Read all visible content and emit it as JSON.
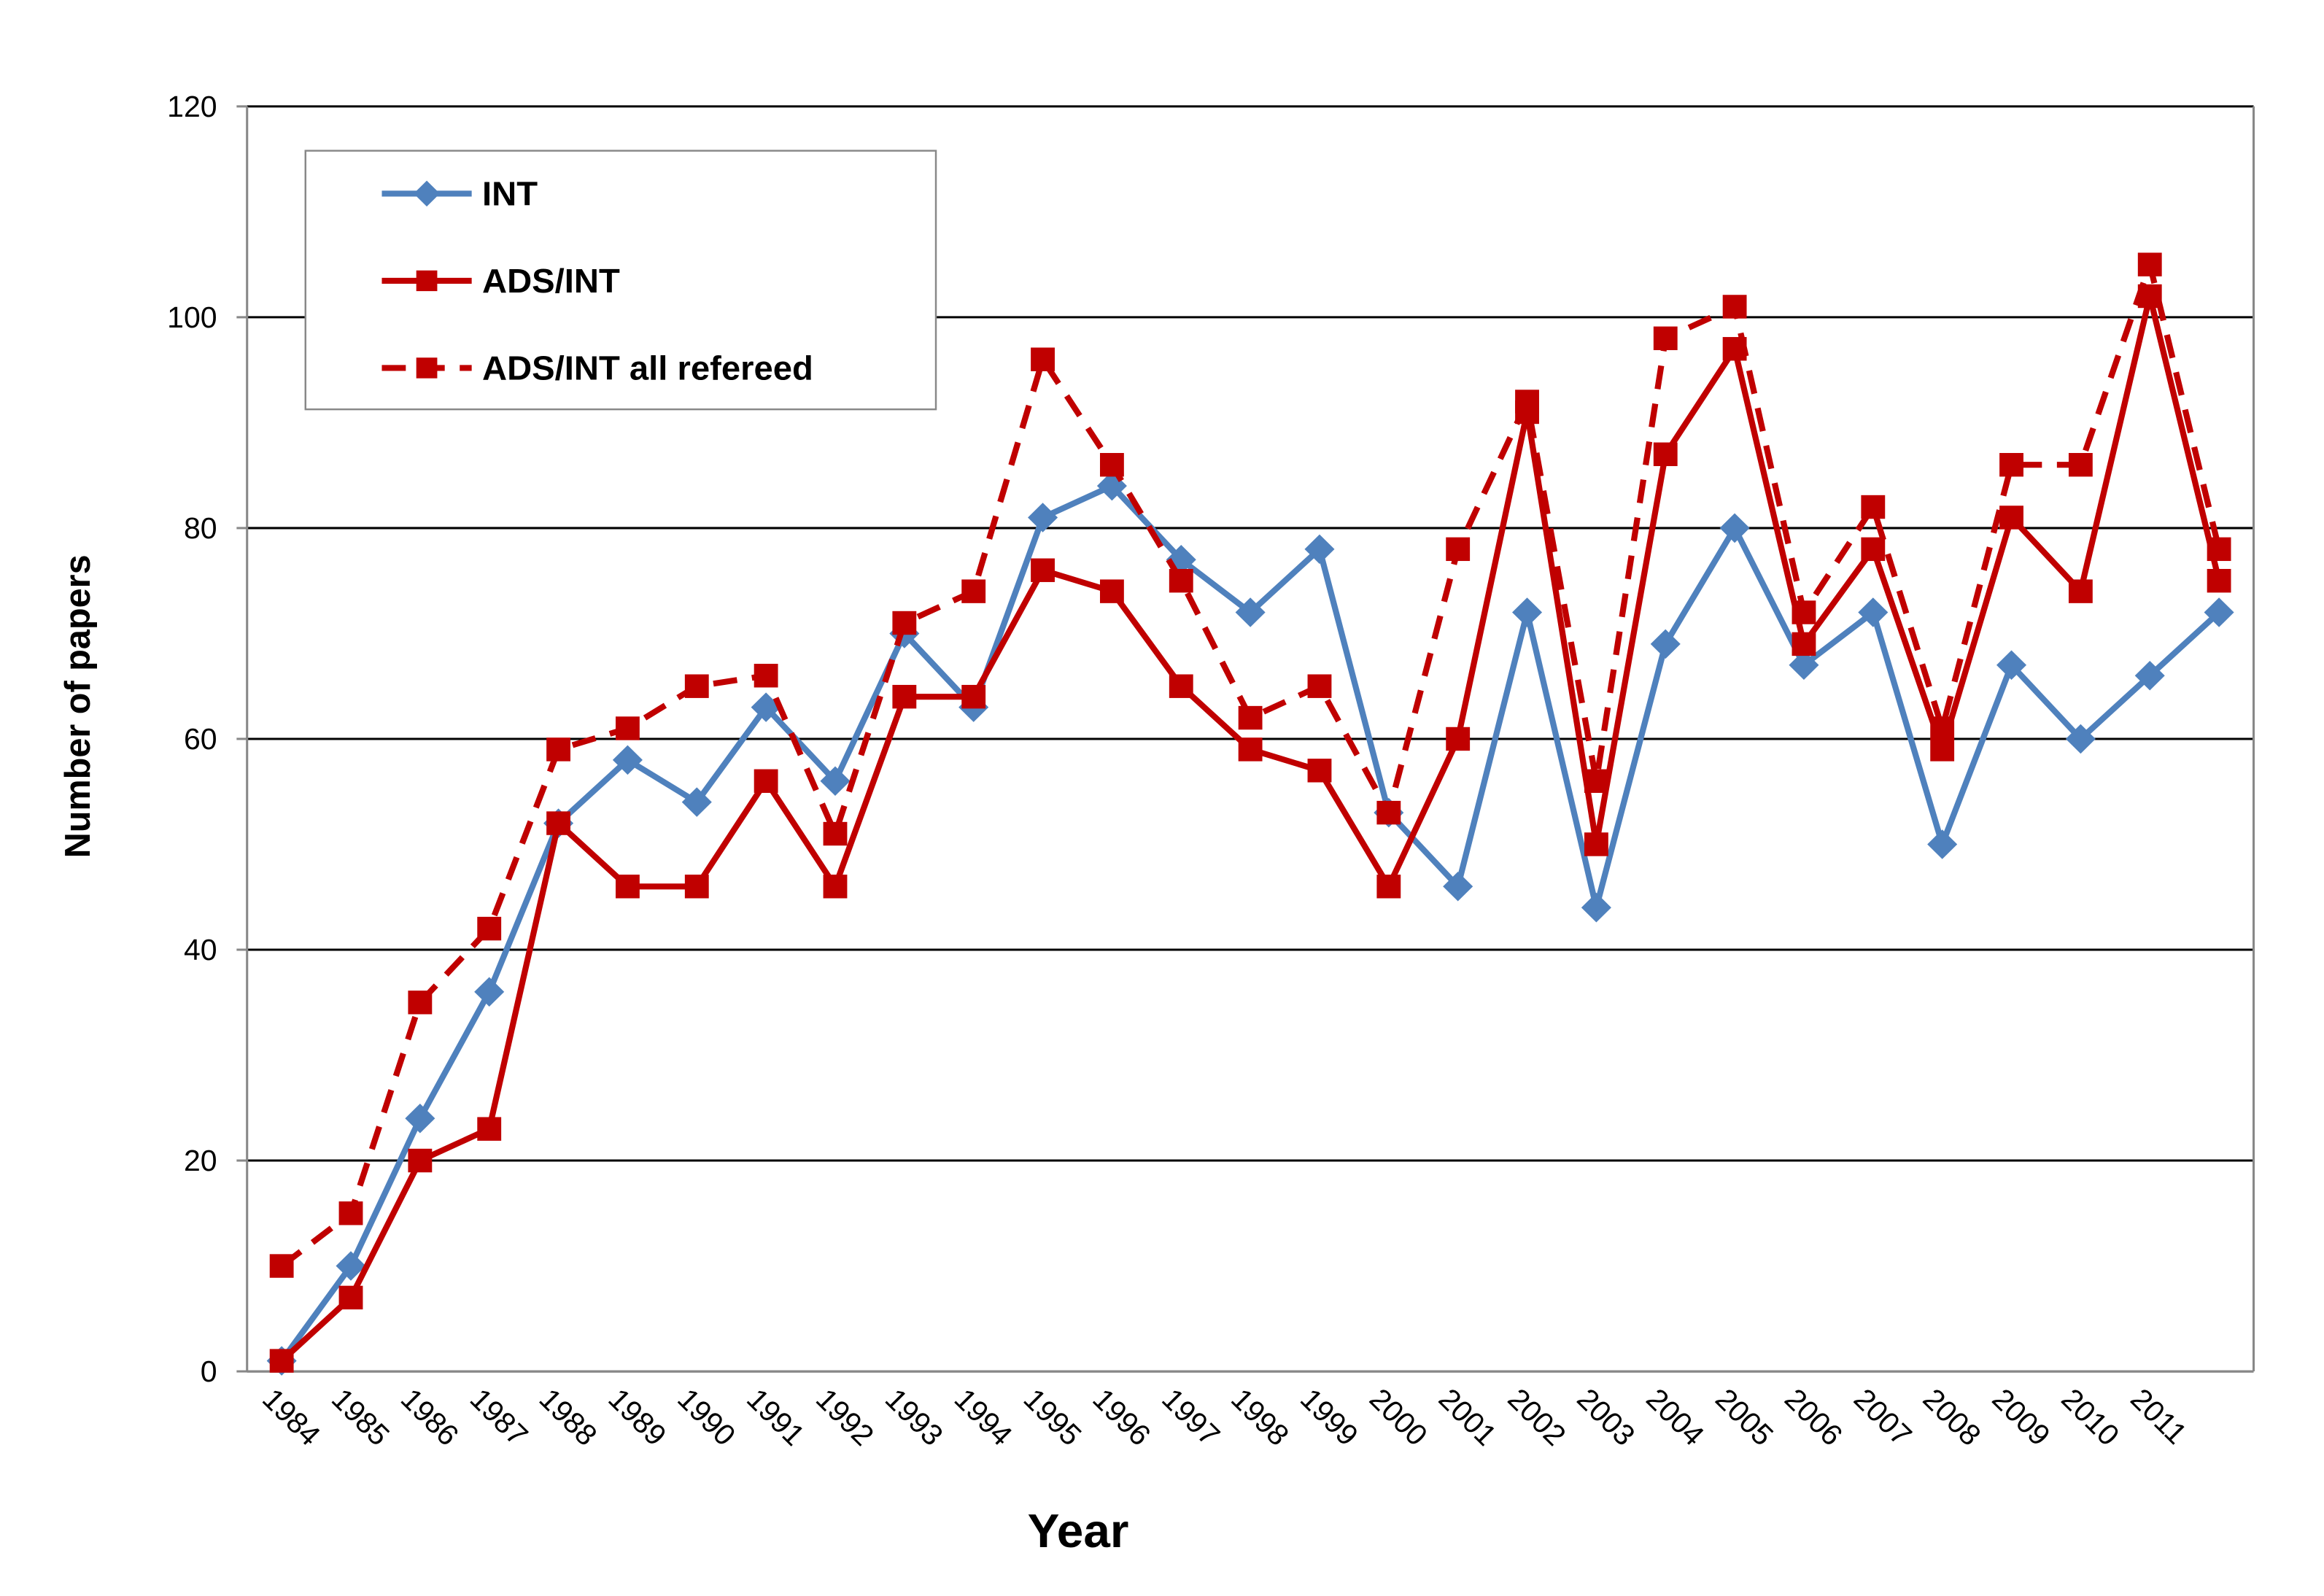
{
  "chart_data": {
    "type": "line",
    "xlabel": "Year",
    "ylabel": "Number of papers",
    "categories": [
      "1984",
      "1985",
      "1986",
      "1987",
      "1988",
      "1989",
      "1990",
      "1991",
      "1992",
      "1993",
      "1994",
      "1995",
      "1996",
      "1997",
      "1998",
      "1999",
      "2000",
      "2001",
      "2002",
      "2003",
      "2004",
      "2005",
      "2006",
      "2007",
      "2008",
      "2009",
      "2010",
      "2011",
      null
    ],
    "series": [
      {
        "name": "INT",
        "color": "#4f81bd",
        "marker": "diamond",
        "dashed": false,
        "values": [
          1,
          10,
          24,
          36,
          52,
          58,
          54,
          63,
          56,
          70,
          63,
          81,
          84,
          77,
          72,
          78,
          53,
          46,
          72,
          44,
          69,
          80,
          67,
          72,
          50,
          67,
          60,
          66,
          72
        ]
      },
      {
        "name": "ADS/INT",
        "color": "#c00000",
        "marker": "square",
        "dashed": false,
        "values": [
          1,
          7,
          20,
          23,
          52,
          46,
          46,
          56,
          46,
          64,
          64,
          76,
          74,
          65,
          59,
          57,
          46,
          60,
          91,
          50,
          87,
          97,
          69,
          78,
          59,
          81,
          74,
          102,
          75
        ]
      },
      {
        "name": "ADS/INT all refereed",
        "color": "#c00000",
        "marker": "square",
        "dashed": true,
        "values": [
          10,
          15,
          35,
          42,
          59,
          61,
          65,
          66,
          51,
          71,
          74,
          96,
          86,
          75,
          62,
          65,
          53,
          78,
          92,
          56,
          98,
          101,
          72,
          82,
          61,
          86,
          86,
          105,
          78
        ]
      }
    ],
    "ylim": [
      0,
      120
    ],
    "yticks": [
      0,
      20,
      40,
      60,
      80,
      100,
      120
    ],
    "grid": true,
    "legend": "upper left"
  }
}
